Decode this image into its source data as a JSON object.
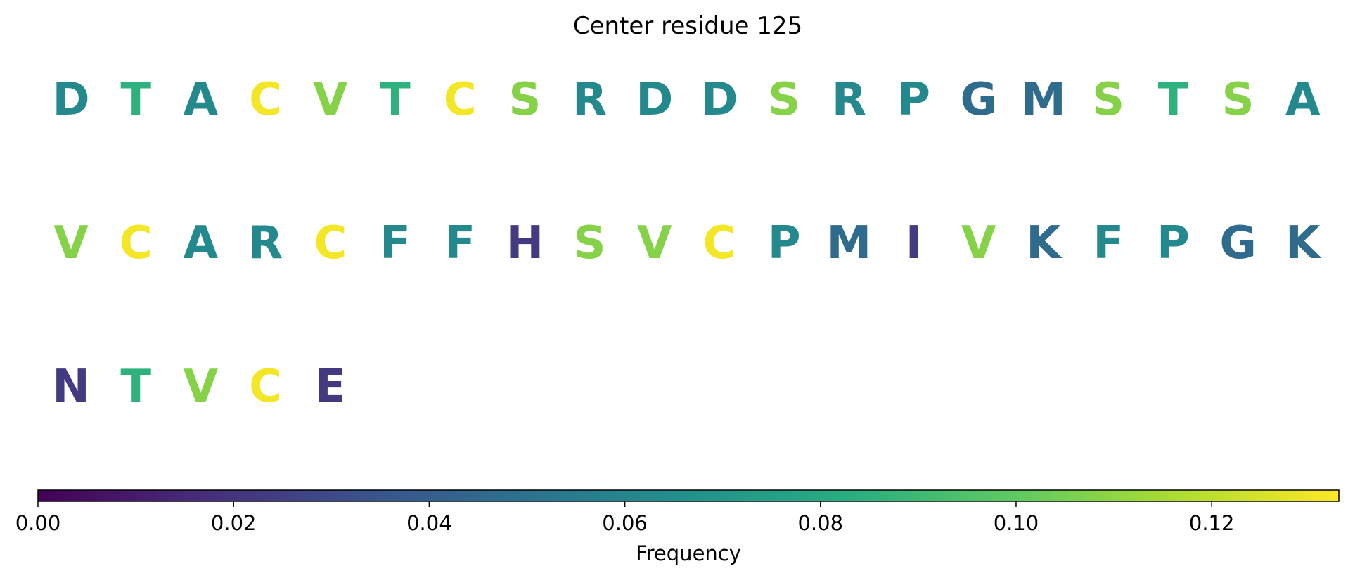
{
  "chart_data": {
    "type": "sequence",
    "title": "Center residue 125",
    "sequence": [
      {
        "residue": "D",
        "frequency": 0.062
      },
      {
        "residue": "T",
        "frequency": 0.085
      },
      {
        "residue": "A",
        "frequency": 0.062
      },
      {
        "residue": "C",
        "frequency": 0.131
      },
      {
        "residue": "V",
        "frequency": 0.108
      },
      {
        "residue": "T",
        "frequency": 0.085
      },
      {
        "residue": "C",
        "frequency": 0.131
      },
      {
        "residue": "S",
        "frequency": 0.108
      },
      {
        "residue": "R",
        "frequency": 0.062
      },
      {
        "residue": "D",
        "frequency": 0.062
      },
      {
        "residue": "D",
        "frequency": 0.062
      },
      {
        "residue": "S",
        "frequency": 0.108
      },
      {
        "residue": "R",
        "frequency": 0.062
      },
      {
        "residue": "P",
        "frequency": 0.062
      },
      {
        "residue": "G",
        "frequency": 0.046
      },
      {
        "residue": "M",
        "frequency": 0.046
      },
      {
        "residue": "S",
        "frequency": 0.108
      },
      {
        "residue": "T",
        "frequency": 0.085
      },
      {
        "residue": "S",
        "frequency": 0.108
      },
      {
        "residue": "A",
        "frequency": 0.062
      },
      {
        "residue": "V",
        "frequency": 0.108
      },
      {
        "residue": "C",
        "frequency": 0.131
      },
      {
        "residue": "A",
        "frequency": 0.062
      },
      {
        "residue": "R",
        "frequency": 0.062
      },
      {
        "residue": "C",
        "frequency": 0.131
      },
      {
        "residue": "F",
        "frequency": 0.062
      },
      {
        "residue": "F",
        "frequency": 0.062
      },
      {
        "residue": "H",
        "frequency": 0.023
      },
      {
        "residue": "S",
        "frequency": 0.108
      },
      {
        "residue": "V",
        "frequency": 0.108
      },
      {
        "residue": "C",
        "frequency": 0.131
      },
      {
        "residue": "P",
        "frequency": 0.062
      },
      {
        "residue": "M",
        "frequency": 0.046
      },
      {
        "residue": "I",
        "frequency": 0.023
      },
      {
        "residue": "V",
        "frequency": 0.108
      },
      {
        "residue": "K",
        "frequency": 0.046
      },
      {
        "residue": "F",
        "frequency": 0.062
      },
      {
        "residue": "P",
        "frequency": 0.062
      },
      {
        "residue": "G",
        "frequency": 0.046
      },
      {
        "residue": "K",
        "frequency": 0.046
      },
      {
        "residue": "N",
        "frequency": 0.023
      },
      {
        "residue": "T",
        "frequency": 0.085
      },
      {
        "residue": "V",
        "frequency": 0.108
      },
      {
        "residue": "C",
        "frequency": 0.131
      },
      {
        "residue": "E",
        "frequency": 0.023
      }
    ],
    "residues_per_row": 20,
    "colormap": "viridis",
    "colorbar": {
      "label": "Frequency",
      "range": [
        0,
        0.133
      ],
      "ticks": [
        0.0,
        0.02,
        0.04,
        0.06,
        0.08,
        0.1,
        0.12
      ],
      "tick_labels": [
        "0.00",
        "0.02",
        "0.04",
        "0.06",
        "0.08",
        "0.10",
        "0.12"
      ],
      "orientation": "horizontal",
      "placement": "bottom"
    }
  }
}
